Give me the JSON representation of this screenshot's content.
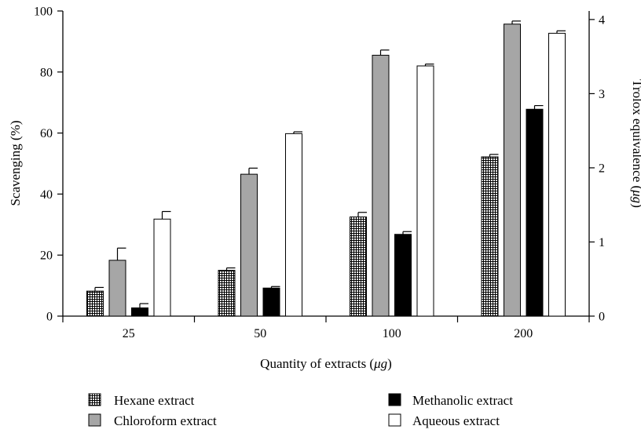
{
  "chart_data": {
    "type": "bar",
    "xlabel_prefix": "Quantity of extracts (",
    "xlabel_unit": "μg",
    "xlabel_suffix": ")",
    "ylabel": "Scavenging (%)",
    "y2label_prefix": "Trolox equivalence (",
    "y2label_unit": "μg",
    "y2label_suffix": ")",
    "categories": [
      "25",
      "50",
      "100",
      "200"
    ],
    "ylim": [
      0,
      100
    ],
    "yticks": [
      0,
      20,
      40,
      60,
      80,
      100
    ],
    "y2lim": [
      0,
      4.115
    ],
    "y2ticks": [
      0,
      1,
      2,
      3,
      4
    ],
    "grid": false,
    "legend_position": "bottom",
    "series": [
      {
        "name": "Hexane extract",
        "values": [
          8.2,
          15.0,
          32.5,
          52.2
        ],
        "errors": [
          1.2,
          0.8,
          1.5,
          0.8
        ],
        "fill": "hatch"
      },
      {
        "name": "Chloroform extract",
        "values": [
          18.3,
          46.5,
          85.5,
          95.7
        ],
        "errors": [
          4.0,
          2.0,
          1.7,
          1.0
        ],
        "fill": "#a6a6a6"
      },
      {
        "name": "Methanolic extract",
        "values": [
          2.7,
          9.2,
          26.8,
          67.8
        ],
        "errors": [
          1.4,
          0.5,
          0.9,
          1.2
        ],
        "fill": "#000000"
      },
      {
        "name": "Aqueous extract",
        "values": [
          31.8,
          59.8,
          82.0,
          92.7
        ],
        "errors": [
          2.5,
          0.6,
          0.6,
          0.8
        ],
        "fill": "#ffffff"
      }
    ]
  }
}
